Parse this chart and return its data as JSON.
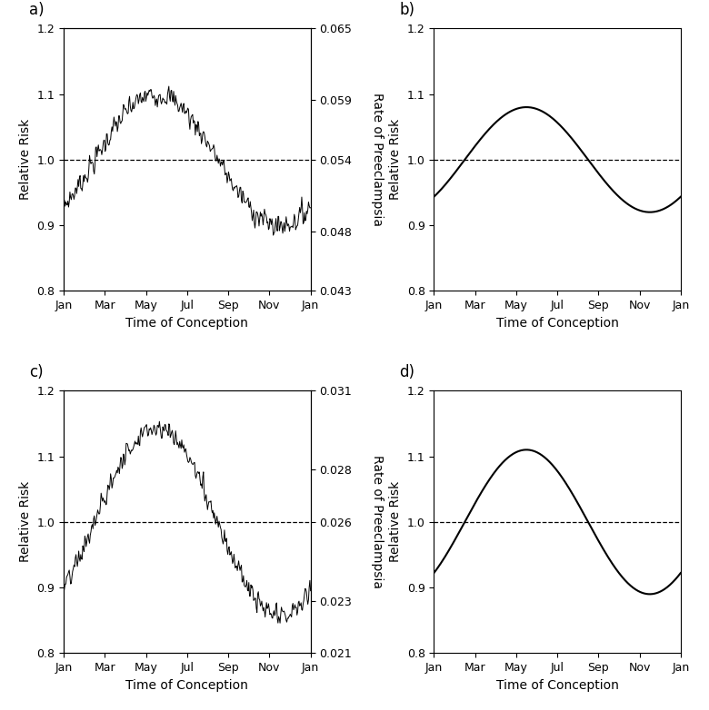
{
  "title_a": "a)",
  "title_b": "b)",
  "title_c": "c)",
  "title_d": "d)",
  "ylabel_left": "Relative Risk",
  "ylabel_right_a": "Rate of Preeclampsia",
  "ylabel_right_c": "Rate of Preeclampsia",
  "xlabel": "Time of Conception",
  "months": [
    "Jan",
    "Mar",
    "May",
    "Jul",
    "Sep",
    "Nov",
    "Jan"
  ],
  "ylim": [
    0.8,
    1.2
  ],
  "yticks": [
    0.8,
    0.9,
    1.0,
    1.1,
    1.2
  ],
  "right_yticks_a": [
    0.043,
    0.048,
    0.054,
    0.059,
    0.065
  ],
  "right_yticks_c": [
    0.021,
    0.023,
    0.026,
    0.028,
    0.031
  ],
  "amp_b": 0.08,
  "amp_d": 0.11,
  "peak_month_b": 4.5,
  "peak_month_d": 4.5,
  "noise_seed_a": 7,
  "noise_seed_c": 13
}
